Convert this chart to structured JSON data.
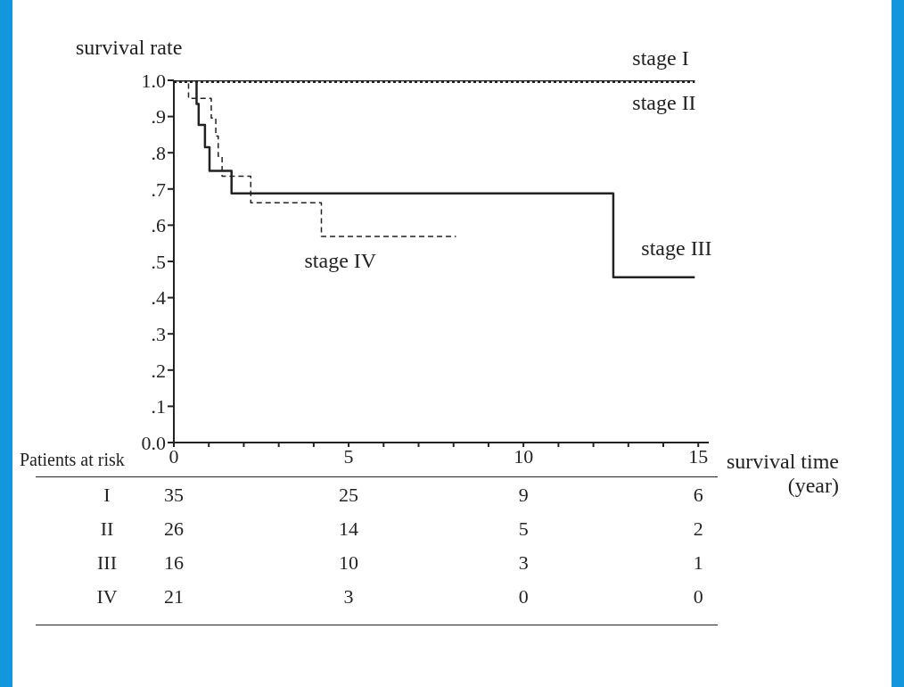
{
  "chart_data": {
    "type": "step",
    "ylabel": "survival rate",
    "xlabel": "survival time\n(year)",
    "xlim": [
      0,
      15.3
    ],
    "ylim": [
      0,
      1
    ],
    "xticks": [
      0,
      {
        "value": 1,
        "label": null
      },
      {
        "value": 2,
        "label": null
      },
      {
        "value": 3,
        "label": null
      },
      {
        "value": 4,
        "label": null
      },
      5,
      {
        "value": 6,
        "label": null
      },
      {
        "value": 7,
        "label": null
      },
      {
        "value": 8,
        "label": null
      },
      {
        "value": 9,
        "label": null
      },
      10,
      {
        "value": 11,
        "label": null
      },
      {
        "value": 12,
        "label": null
      },
      {
        "value": 13,
        "label": null
      },
      {
        "value": 14,
        "label": null
      },
      15
    ],
    "yticks": [
      {
        "value": 0,
        "label": "0.0"
      },
      {
        "value": 0.1,
        "label": ".1"
      },
      {
        "value": 0.2,
        "label": ".2"
      },
      {
        "value": 0.3,
        "label": ".3"
      },
      {
        "value": 0.4,
        "label": ".4"
      },
      {
        "value": 0.5,
        "label": ".5"
      },
      {
        "value": 0.6,
        "label": ".6"
      },
      {
        "value": 0.7,
        "label": ".7"
      },
      {
        "value": 0.8,
        "label": ".8"
      },
      {
        "value": 0.9,
        "label": ".9"
      },
      {
        "value": 1,
        "label": "1.0"
      }
    ],
    "marker": "none",
    "series": [
      {
        "name": "stage I",
        "color": "#222222",
        "line_style": "solid",
        "x": [
          0,
          14.9
        ],
        "values": [
          1,
          1
        ]
      },
      {
        "name": "stage II",
        "color": "#222222",
        "line_style": "dotted",
        "x": [
          0,
          14.9
        ],
        "values": [
          1,
          1
        ]
      },
      {
        "name": "stage III",
        "color": "#222222",
        "line_style": "solid",
        "x": [
          0,
          0.65,
          0.71,
          0.89,
          1.02,
          1.65,
          12.57,
          14.9
        ],
        "values": [
          1,
          0.935,
          0.877,
          0.815,
          0.75,
          0.688,
          0.456,
          0.456
        ]
      },
      {
        "name": "stage IV",
        "color": "#222222",
        "line_style": "dashed",
        "x": [
          0,
          0.42,
          1.07,
          1.2,
          1.27,
          1.38,
          2.2,
          4.22,
          8.07
        ],
        "values": [
          1,
          0.95,
          0.896,
          0.846,
          0.79,
          0.735,
          0.662,
          0.569,
          0.569
        ]
      }
    ],
    "annotations": [
      "Patients at risk",
      "I",
      "35",
      "25",
      "9",
      "6",
      "II",
      "26",
      "14",
      "5",
      "2",
      "III",
      "16",
      "10",
      "3",
      "1",
      "IV",
      "21",
      "3",
      "0",
      "0"
    ]
  }
}
